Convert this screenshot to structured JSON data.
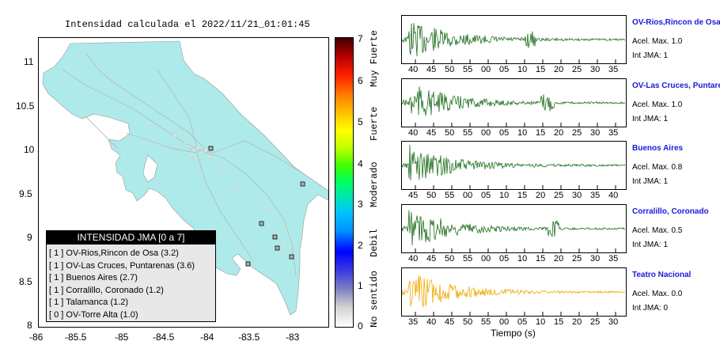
{
  "map": {
    "title": "Intensidad calculada el 2022/11/21_01:01:45",
    "x_ticks": [
      "-86",
      "-85.5",
      "-85",
      "-84.5",
      "-84",
      "-83.5",
      "-83"
    ],
    "y_ticks": [
      "11",
      "10.5",
      "10",
      "9.5",
      "9",
      "8.5",
      "8"
    ],
    "land_color": "#aeeaea",
    "legend": {
      "header": "INTENSIDAD JMA [0 a 7]",
      "items": [
        "[ 1 ] OV-Rios,Rincon de Osa (3.2)",
        "[ 1 ] OV-Las Cruces, Puntarenas (3.6)",
        "[ 1 ] Buenos Aires (2.7)",
        "[ 1 ] Corralillo, Coronado (1.2)",
        "[ 1 ] Talamanca (1.2)",
        "[ 0 ] OV-Torre Alta (1.0)"
      ]
    }
  },
  "colorbar": {
    "ticks": [
      "7",
      "6",
      "5",
      "4",
      "3",
      "2",
      "1",
      "0"
    ],
    "levels": [
      "Muy Fuerte",
      "Fuerte",
      "Moderado",
      "Debil",
      "No sentido"
    ]
  },
  "waveforms": {
    "x_axis_title": "Tiempo (s)",
    "stations": [
      {
        "name": "OV-Rios,Rincon de Osa",
        "accel": "Acel. Max. 1.0",
        "jma": "Int JMA: 1",
        "color": "#1e6e1e",
        "ticks": [
          "40",
          "45",
          "50",
          "55",
          "00",
          "05",
          "10",
          "15",
          "20",
          "25",
          "30",
          "35"
        ]
      },
      {
        "name": "OV-Las Cruces, Puntarenas",
        "accel": "Acel. Max. 1.0",
        "jma": "Int JMA: 1",
        "color": "#1e6e1e",
        "ticks": [
          "40",
          "45",
          "50",
          "55",
          "00",
          "05",
          "10",
          "15",
          "20",
          "25",
          "30",
          "35"
        ]
      },
      {
        "name": "Buenos Aires",
        "accel": "Acel. Max. 0.8",
        "jma": "Int JMA: 1",
        "color": "#1e6e1e",
        "ticks": [
          "45",
          "50",
          "55",
          "00",
          "05",
          "10",
          "15",
          "20",
          "25",
          "30",
          "35",
          "40"
        ]
      },
      {
        "name": "Corralillo, Coronado",
        "accel": "Acel. Max. 0.5",
        "jma": "Int JMA: 1",
        "color": "#1e6e1e",
        "ticks": [
          "40",
          "45",
          "50",
          "55",
          "00",
          "05",
          "10",
          "15",
          "20",
          "25",
          "30",
          "35"
        ]
      },
      {
        "name": "Teatro Nacional",
        "accel": "Acel. Max. 0.0",
        "jma": "Int JMA: 0",
        "color": "#f0a800",
        "ticks": [
          "35",
          "40",
          "45",
          "50",
          "55",
          "00",
          "05",
          "10",
          "15",
          "20",
          "25",
          "30"
        ]
      }
    ]
  }
}
